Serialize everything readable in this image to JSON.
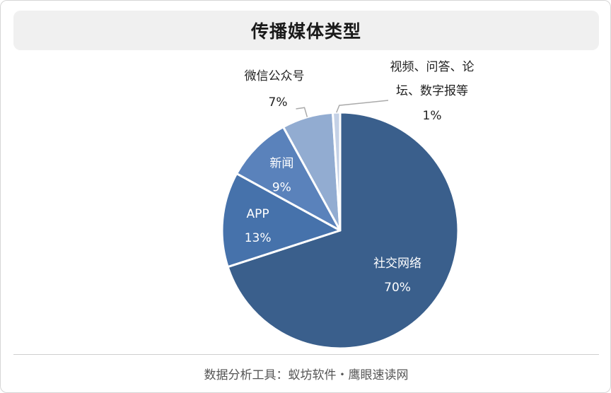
{
  "title": "传播媒体类型",
  "footer": "数据分析工具：蚁坊软件・鹰眼速读网",
  "chart_data": {
    "type": "pie",
    "title": "传播媒体类型",
    "slices": [
      {
        "label": "社交网络",
        "value": 70,
        "value_label": "70%",
        "color": "#3a5f8c",
        "label_color": "#ffffff",
        "label_position": "inside"
      },
      {
        "label": "APP",
        "value": 13,
        "value_label": "13%",
        "color": "#4672ab",
        "label_color": "#ffffff",
        "label_position": "inside"
      },
      {
        "label": "新闻",
        "value": 9,
        "value_label": "9%",
        "color": "#5a82bb",
        "label_color": "#ffffff",
        "label_position": "inside"
      },
      {
        "label": "微信公众号",
        "value": 7,
        "value_label": "7%",
        "color": "#92acd1",
        "label_color": "#222222",
        "label_position": "outside"
      },
      {
        "label": "视频、问答、论坛、数字报等",
        "label_lines": [
          "视频、问答、论",
          "坛、数字报等"
        ],
        "value": 1,
        "value_label": "1%",
        "color": "#c4d1e6",
        "label_color": "#222222",
        "label_position": "outside"
      }
    ]
  }
}
